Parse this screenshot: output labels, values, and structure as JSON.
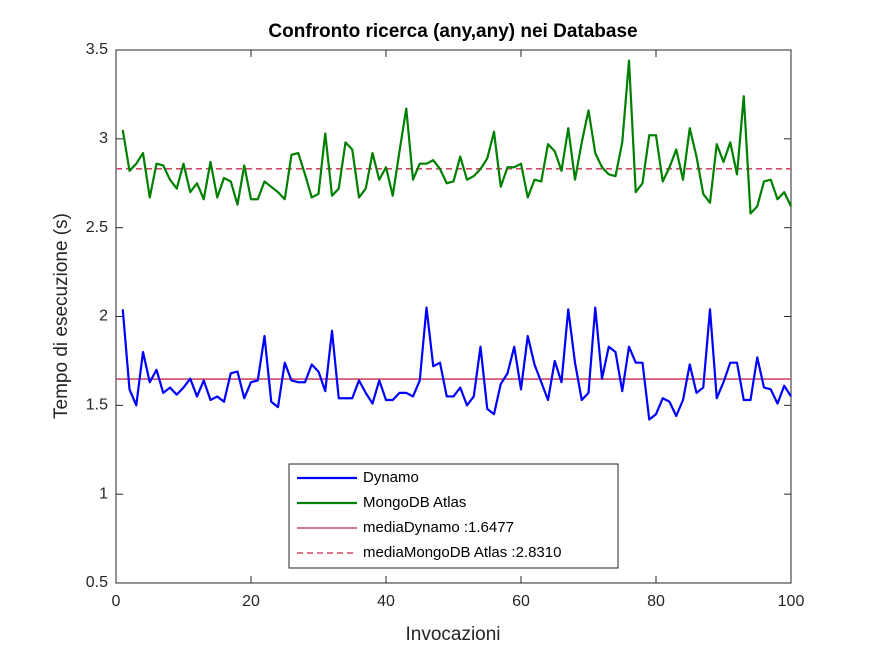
{
  "chart_data": {
    "type": "line",
    "title": "Confronto ricerca (any,any) nei Database",
    "xlabel": "Invocazioni",
    "ylabel": "Tempo di esecuzione (s)",
    "x": [
      1,
      2,
      3,
      4,
      5,
      6,
      7,
      8,
      9,
      10,
      11,
      12,
      13,
      14,
      15,
      16,
      17,
      18,
      19,
      20,
      21,
      22,
      23,
      24,
      25,
      26,
      27,
      28,
      29,
      30,
      31,
      32,
      33,
      34,
      35,
      36,
      37,
      38,
      39,
      40,
      41,
      42,
      43,
      44,
      45,
      46,
      47,
      48,
      49,
      50,
      51,
      52,
      53,
      54,
      55,
      56,
      57,
      58,
      59,
      60,
      61,
      62,
      63,
      64,
      65,
      66,
      67,
      68,
      69,
      70,
      71,
      72,
      73,
      74,
      75,
      76,
      77,
      78,
      79,
      80,
      81,
      82,
      83,
      84,
      85,
      86,
      87,
      88,
      89,
      90,
      91,
      92,
      93,
      94,
      95,
      96,
      97,
      98,
      99,
      100
    ],
    "series": [
      {
        "name": "Dynamo",
        "color": "#0000ff",
        "values": [
          2.04,
          1.59,
          1.5,
          1.8,
          1.63,
          1.7,
          1.57,
          1.6,
          1.56,
          1.6,
          1.65,
          1.55,
          1.64,
          1.53,
          1.55,
          1.52,
          1.68,
          1.69,
          1.54,
          1.63,
          1.64,
          1.89,
          1.52,
          1.49,
          1.74,
          1.64,
          1.63,
          1.63,
          1.73,
          1.69,
          1.58,
          1.92,
          1.54,
          1.54,
          1.54,
          1.64,
          1.57,
          1.51,
          1.64,
          1.53,
          1.53,
          1.57,
          1.57,
          1.55,
          1.64,
          2.05,
          1.72,
          1.74,
          1.55,
          1.55,
          1.6,
          1.5,
          1.55,
          1.83,
          1.48,
          1.45,
          1.62,
          1.68,
          1.83,
          1.59,
          1.89,
          1.73,
          1.63,
          1.53,
          1.75,
          1.63,
          2.04,
          1.74,
          1.53,
          1.57,
          2.05,
          1.65,
          1.83,
          1.8,
          1.58,
          1.83,
          1.74,
          1.74,
          1.42,
          1.45,
          1.54,
          1.52,
          1.44,
          1.53,
          1.73,
          1.57,
          1.6,
          2.04,
          1.54,
          1.63,
          1.74,
          1.74,
          1.53,
          1.53,
          1.77,
          1.6,
          1.59,
          1.51,
          1.61,
          1.55
        ]
      },
      {
        "name": "MongoDB Atlas",
        "color": "#008000",
        "values": [
          3.05,
          2.82,
          2.86,
          2.92,
          2.67,
          2.86,
          2.85,
          2.77,
          2.72,
          2.86,
          2.7,
          2.75,
          2.66,
          2.87,
          2.67,
          2.78,
          2.76,
          2.63,
          2.85,
          2.66,
          2.66,
          2.76,
          2.73,
          2.7,
          2.66,
          2.91,
          2.92,
          2.8,
          2.67,
          2.69,
          3.03,
          2.68,
          2.72,
          2.98,
          2.94,
          2.67,
          2.72,
          2.92,
          2.77,
          2.84,
          2.68,
          2.93,
          3.17,
          2.77,
          2.86,
          2.86,
          2.88,
          2.83,
          2.75,
          2.76,
          2.9,
          2.77,
          2.79,
          2.83,
          2.89,
          3.04,
          2.73,
          2.84,
          2.84,
          2.86,
          2.67,
          2.77,
          2.76,
          2.97,
          2.93,
          2.82,
          3.06,
          2.77,
          2.98,
          3.16,
          2.92,
          2.84,
          2.8,
          2.79,
          2.98,
          3.44,
          2.7,
          2.75,
          3.02,
          3.02,
          2.76,
          2.84,
          2.94,
          2.77,
          3.06,
          2.9,
          2.69,
          2.64,
          2.97,
          2.87,
          2.98,
          2.8,
          3.24,
          2.58,
          2.62,
          2.76,
          2.77,
          2.66,
          2.7,
          2.62
        ]
      }
    ],
    "mean_lines": [
      {
        "name": "mediaDynamo :1.6477",
        "color": "#cc4c66",
        "value": 1.6477,
        "dashed": false
      },
      {
        "name": "mediaMongoDB Atlas :2.8310",
        "color": "#cc4c66",
        "value": 2.831,
        "dashed": true
      }
    ],
    "xlim": [
      0,
      100
    ],
    "xticks": [
      0,
      20,
      40,
      60,
      80,
      100
    ],
    "ylim": [
      0.5,
      3.5
    ],
    "yticks": [
      0.5,
      1,
      1.5,
      2,
      2.5,
      3,
      3.5
    ],
    "legend": "lower center"
  }
}
